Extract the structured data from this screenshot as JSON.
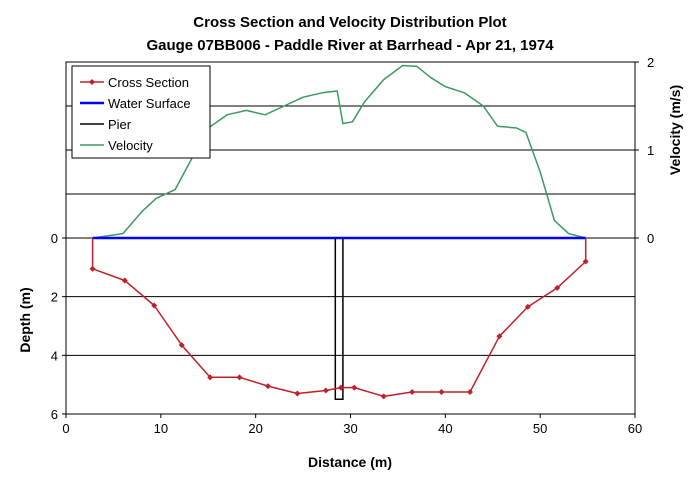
{
  "chart_data": {
    "type": "line",
    "title": "Cross Section and Velocity Distribution Plot",
    "subtitle": "Gauge 07BB006 - Paddle River at Barrhead - Apr 21, 1974",
    "xlabel": "Distance (m)",
    "ylabel_left": "Depth (m)",
    "ylabel_right": "Velocity (m/s)",
    "x_ticks": [
      "0",
      "10",
      "20",
      "30",
      "40",
      "50",
      "60"
    ],
    "y_left_ticks": [
      "0",
      "2",
      "4",
      "6"
    ],
    "y_right_ticks": [
      "0",
      "1",
      "2"
    ],
    "xlim": [
      0,
      60
    ],
    "depth_lim": [
      0,
      6
    ],
    "velocity_lim": [
      0,
      2
    ],
    "grid": "horizontal",
    "legend_position": "top-left",
    "colors": {
      "cross_section": "#c0202a",
      "water_surface": "#0000ff",
      "pier": "#000000",
      "velocity": "#3c9a5f"
    },
    "legend": [
      "Cross Section",
      "Water Surface",
      "Pier",
      "Velocity"
    ],
    "series": [
      {
        "name": "Cross Section",
        "axis": "depth",
        "x": [
          2.8,
          2.8,
          6.2,
          9.3,
          12.2,
          15.2,
          18.3,
          21.3,
          24.4,
          27.4,
          29.0,
          30.4,
          33.5,
          36.5,
          39.6,
          42.6,
          45.7,
          48.7,
          51.8,
          54.8,
          54.8
        ],
        "y": [
          0.0,
          1.05,
          1.45,
          2.3,
          3.65,
          4.75,
          4.75,
          5.05,
          5.3,
          5.2,
          5.1,
          5.1,
          5.4,
          5.25,
          5.25,
          5.25,
          3.35,
          2.35,
          1.7,
          0.8,
          0.0
        ]
      },
      {
        "name": "Water Surface",
        "axis": "depth",
        "x": [
          2.8,
          54.8
        ],
        "y": [
          0.0,
          0.0
        ]
      },
      {
        "name": "Pier",
        "axis": "depth",
        "x": [
          28.4,
          28.4,
          29.2,
          29.2
        ],
        "y": [
          0.0,
          5.5,
          5.5,
          0.0
        ]
      },
      {
        "name": "Velocity",
        "axis": "velocity",
        "x": [
          2.8,
          6.0,
          8.0,
          9.5,
          11.5,
          13.5,
          15.0,
          17.0,
          19.0,
          21.0,
          23.0,
          25.0,
          27.0,
          28.6,
          29.2,
          30.2,
          31.5,
          33.5,
          35.5,
          37.0,
          38.5,
          40.0,
          42.0,
          44.0,
          45.5,
          47.5,
          48.5,
          50.0,
          51.5,
          53.0,
          54.8
        ],
        "y": [
          0.0,
          0.05,
          0.3,
          0.45,
          0.55,
          0.95,
          1.25,
          1.4,
          1.45,
          1.4,
          1.5,
          1.6,
          1.65,
          1.67,
          1.3,
          1.32,
          1.55,
          1.8,
          1.96,
          1.95,
          1.82,
          1.72,
          1.65,
          1.5,
          1.27,
          1.25,
          1.2,
          0.75,
          0.2,
          0.05,
          0.0
        ]
      }
    ]
  }
}
